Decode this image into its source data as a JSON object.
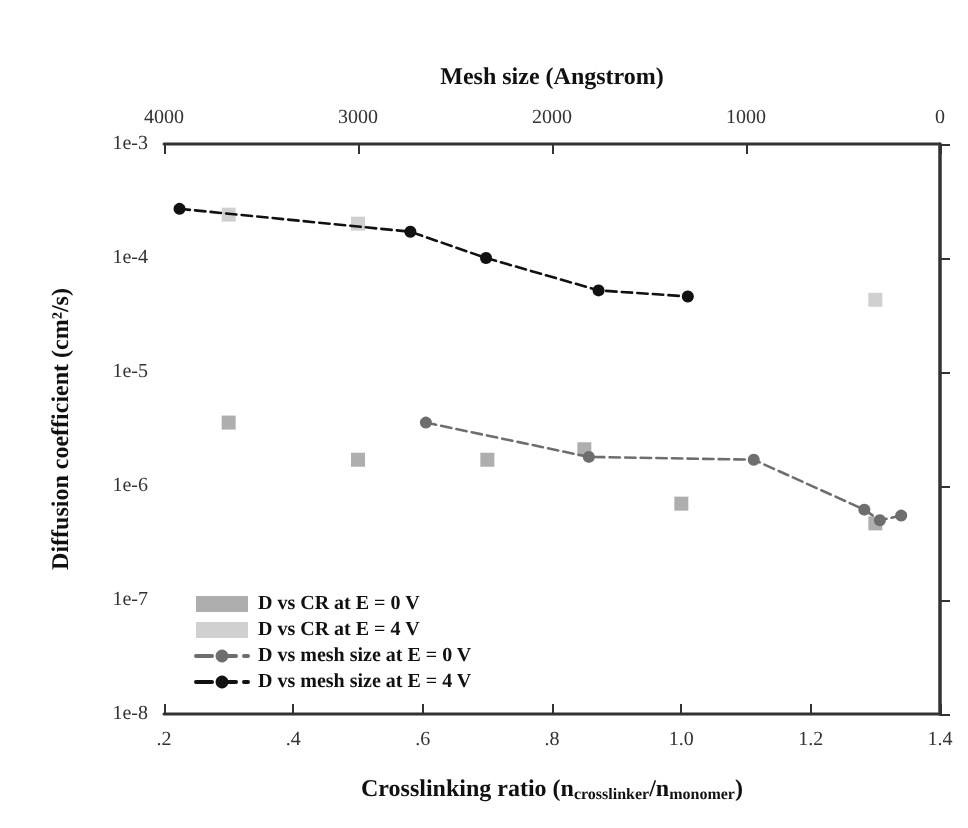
{
  "chart_data": {
    "type": "scatter",
    "xlabel": "Crosslinking ratio (n$_{crosslinker}$/n$_{monomer}$)",
    "x2label": "Mesh size (Angstrom)",
    "ylabel": "Diffusion coefficient (cm²/s)",
    "xlim": [
      0.2,
      1.4
    ],
    "xticks": [
      {
        "value": 0.2,
        "label": ".2"
      },
      {
        "value": 0.4,
        "label": ".4"
      },
      {
        "value": 0.6,
        "label": ".6"
      },
      {
        "value": 0.8,
        "label": ".8"
      },
      {
        "value": 1.0,
        "label": "1.0"
      },
      {
        "value": 1.2,
        "label": "1.2"
      },
      {
        "value": 1.4,
        "label": "1.4"
      }
    ],
    "x2lim": [
      4000,
      0
    ],
    "x2ticks": [
      4000,
      3000,
      2000,
      1000,
      0
    ],
    "ylim": [
      1e-08,
      0.001
    ],
    "yticks": [
      {
        "value": 1e-08,
        "label": "1e-8"
      },
      {
        "value": 1e-07,
        "label": "1e-7"
      },
      {
        "value": 1e-06,
        "label": "1e-6"
      },
      {
        "value": 1e-05,
        "label": "1e-5"
      },
      {
        "value": 0.0001,
        "label": "1e-4"
      },
      {
        "value": 0.001,
        "label": "1e-3"
      }
    ],
    "log": "y",
    "grid": false,
    "legend": "bottom left",
    "series": [
      {
        "name": "D vs CR at E = 0 V",
        "marker": "square",
        "color": "#9a9a9a",
        "x": [
          0.3,
          0.5,
          0.7,
          0.85,
          1.0,
          1.3
        ],
        "values": [
          3.6e-06,
          1.7e-06,
          1.7e-06,
          2.1e-06,
          7e-07,
          4.7e-07
        ]
      },
      {
        "name": "D vs CR at E = 4 V",
        "marker": "square",
        "color": "#c4c4c4",
        "x": [
          0.3,
          0.5,
          1.3
        ],
        "values": [
          0.00024,
          0.0002,
          4.3e-05
        ]
      },
      {
        "name": "D vs mesh size at E = 0 V",
        "type": "line",
        "axis": "x2",
        "marker": "circle",
        "line_style": "dashed",
        "color": "#6e6e6e",
        "x": [
          2650,
          1810,
          960,
          390,
          310,
          200
        ],
        "values": [
          3.6e-06,
          1.8e-06,
          1.7e-06,
          6.2e-07,
          5e-07,
          5.5e-07
        ]
      },
      {
        "name": "D vs mesh size at E = 4 V",
        "type": "line",
        "axis": "x2",
        "marker": "circle",
        "line_style": "dashed",
        "color": "#111111",
        "x": [
          3920,
          2730,
          2340,
          1760,
          1300
        ],
        "values": [
          0.00027,
          0.00017,
          0.0001,
          5.2e-05,
          4.6e-05
        ]
      }
    ]
  }
}
